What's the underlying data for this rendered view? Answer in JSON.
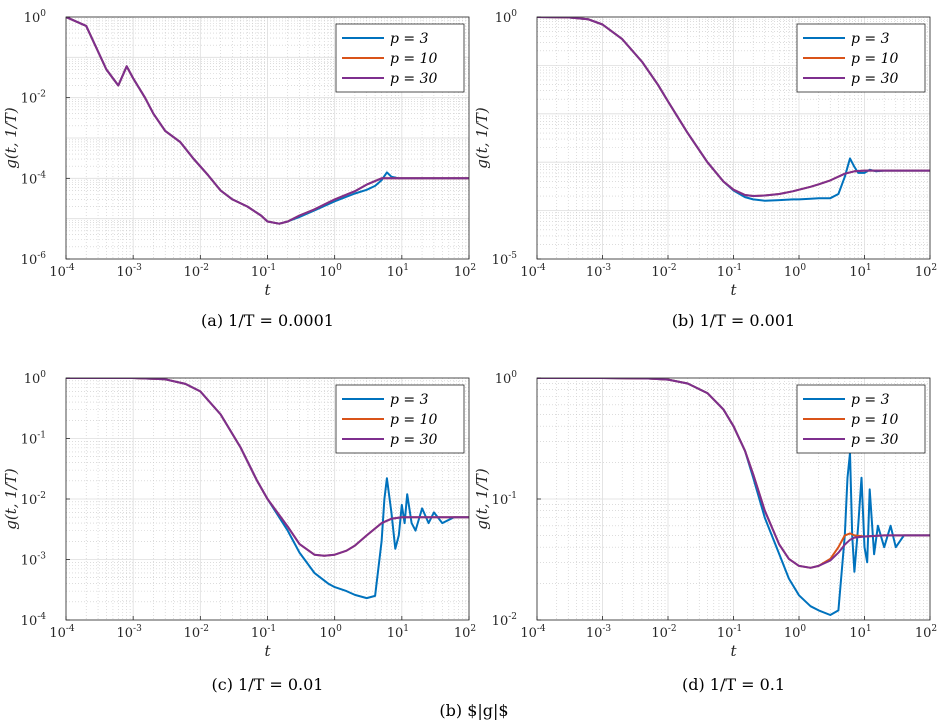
{
  "figure_caption": "(b) $|g|$",
  "colors": {
    "p3": "#0072BD",
    "p10": "#D95319",
    "p30": "#7E2F8E"
  },
  "chart_data": [
    {
      "type": "line",
      "caption": "(a) 1/T = 0.0001",
      "xlabel": "t",
      "ylabel": "g(t, 1/T)",
      "xscale": "log",
      "yscale": "log",
      "xlim": [
        0.0001,
        100
      ],
      "ylim": [
        1e-06,
        1
      ],
      "xticks": [
        0.0001,
        0.001,
        0.01,
        0.1,
        1,
        10,
        100
      ],
      "yticks": [
        1e-06,
        0.0001,
        0.01,
        1
      ],
      "ytick_exps": [
        -6,
        -4,
        -2,
        0
      ],
      "grid": true,
      "legend_position": "top-right",
      "series": [
        {
          "name": "p = 3",
          "color": "#0072BD",
          "x": [
            0.0001,
            0.0002,
            0.0004,
            0.0006,
            0.0008,
            0.001,
            0.0015,
            0.002,
            0.003,
            0.005,
            0.008,
            0.013,
            0.02,
            0.03,
            0.05,
            0.08,
            0.1,
            0.15,
            0.2,
            0.3,
            0.5,
            1,
            2,
            3,
            4,
            5,
            6,
            7,
            9,
            12,
            20,
            50,
            100
          ],
          "y": [
            1.0,
            0.6,
            0.05,
            0.02,
            0.06,
            0.03,
            0.01,
            0.004,
            0.0015,
            0.0008,
            0.0003,
            0.00012,
            5e-05,
            3e-05,
            2e-05,
            1.2e-05,
            8.5e-06,
            7.5e-06,
            8.5e-06,
            1.1e-05,
            1.6e-05,
            2.7e-05,
            4.2e-05,
            5.2e-05,
            6.5e-05,
            9e-05,
            0.00014,
            0.00011,
            0.0001,
            0.0001,
            0.0001,
            0.0001,
            0.0001
          ]
        },
        {
          "name": "p = 10",
          "color": "#D95319",
          "x": [
            0.0001,
            0.0002,
            0.0004,
            0.0006,
            0.0008,
            0.001,
            0.0015,
            0.002,
            0.003,
            0.005,
            0.008,
            0.013,
            0.02,
            0.03,
            0.05,
            0.08,
            0.1,
            0.15,
            0.2,
            0.3,
            0.5,
            1,
            2,
            3,
            5,
            7,
            10,
            20,
            50,
            100
          ],
          "y": [
            1.0,
            0.6,
            0.05,
            0.02,
            0.06,
            0.03,
            0.01,
            0.004,
            0.0015,
            0.0008,
            0.0003,
            0.00012,
            5e-05,
            3e-05,
            2e-05,
            1.2e-05,
            8.5e-06,
            7.5e-06,
            8.5e-06,
            1.2e-05,
            1.7e-05,
            3e-05,
            4.8e-05,
            7e-05,
            0.0001,
            0.0001,
            0.0001,
            0.0001,
            0.0001,
            0.0001
          ]
        },
        {
          "name": "p = 30",
          "color": "#7E2F8E",
          "x": [
            0.0001,
            0.0002,
            0.0004,
            0.0006,
            0.0008,
            0.001,
            0.0015,
            0.002,
            0.003,
            0.005,
            0.008,
            0.013,
            0.02,
            0.03,
            0.05,
            0.08,
            0.1,
            0.15,
            0.2,
            0.3,
            0.5,
            1,
            2,
            3,
            5,
            7,
            10,
            20,
            50,
            100
          ],
          "y": [
            1.0,
            0.6,
            0.05,
            0.02,
            0.06,
            0.03,
            0.01,
            0.004,
            0.0015,
            0.0008,
            0.0003,
            0.00012,
            5e-05,
            3e-05,
            2e-05,
            1.2e-05,
            8.5e-06,
            7.5e-06,
            8.5e-06,
            1.2e-05,
            1.7e-05,
            3e-05,
            4.8e-05,
            7e-05,
            0.0001,
            0.0001,
            0.0001,
            0.0001,
            0.0001,
            0.0001
          ]
        }
      ]
    },
    {
      "type": "line",
      "caption": "(b) 1/T = 0.001",
      "xlabel": "t",
      "ylabel": "g(t, 1/T)",
      "xscale": "log",
      "yscale": "log",
      "xlim": [
        0.0001,
        100
      ],
      "ylim": [
        1e-05,
        1
      ],
      "xticks": [
        0.0001,
        0.001,
        0.01,
        0.1,
        1,
        10,
        100
      ],
      "yticks": [
        1e-05,
        1
      ],
      "ytick_exps": [
        -5,
        0
      ],
      "grid": true,
      "legend_position": "top-right",
      "series": [
        {
          "name": "p = 3",
          "color": "#0072BD",
          "x": [
            0.0001,
            0.0003,
            0.0006,
            0.001,
            0.002,
            0.004,
            0.007,
            0.01,
            0.02,
            0.04,
            0.07,
            0.1,
            0.15,
            0.2,
            0.3,
            0.5,
            0.8,
            1,
            1.5,
            2,
            3,
            4,
            5,
            6,
            7,
            8,
            10,
            12,
            15,
            20,
            50,
            100
          ],
          "y": [
            1.0,
            0.98,
            0.9,
            0.7,
            0.35,
            0.12,
            0.04,
            0.018,
            0.004,
            0.001,
            0.0004,
            0.00026,
            0.00019,
            0.00017,
            0.00016,
            0.000165,
            0.00017,
            0.00017,
            0.000175,
            0.00018,
            0.00018,
            0.00022,
            0.0005,
            0.0012,
            0.0008,
            0.0006,
            0.0006,
            0.0007,
            0.00065,
            0.00067,
            0.00067,
            0.00067
          ]
        },
        {
          "name": "p = 10",
          "color": "#D95319",
          "x": [
            0.0001,
            0.0003,
            0.0006,
            0.001,
            0.002,
            0.004,
            0.007,
            0.01,
            0.02,
            0.04,
            0.07,
            0.1,
            0.15,
            0.2,
            0.3,
            0.5,
            0.8,
            1,
            1.5,
            2,
            3,
            5,
            7,
            10,
            20,
            50,
            100
          ],
          "y": [
            1.0,
            0.98,
            0.9,
            0.7,
            0.35,
            0.12,
            0.04,
            0.018,
            0.004,
            0.001,
            0.0004,
            0.00027,
            0.00021,
            0.0002,
            0.000205,
            0.00022,
            0.00025,
            0.00027,
            0.00031,
            0.00035,
            0.00042,
            0.00058,
            0.00065,
            0.00067,
            0.00067,
            0.00067,
            0.00067
          ]
        },
        {
          "name": "p = 30",
          "color": "#7E2F8E",
          "x": [
            0.0001,
            0.0003,
            0.0006,
            0.001,
            0.002,
            0.004,
            0.007,
            0.01,
            0.02,
            0.04,
            0.07,
            0.1,
            0.15,
            0.2,
            0.3,
            0.5,
            0.8,
            1,
            1.5,
            2,
            3,
            5,
            7,
            10,
            20,
            50,
            100
          ],
          "y": [
            1.0,
            0.98,
            0.9,
            0.7,
            0.35,
            0.12,
            0.04,
            0.018,
            0.004,
            0.001,
            0.0004,
            0.00027,
            0.00021,
            0.0002,
            0.000205,
            0.00022,
            0.00025,
            0.00027,
            0.00031,
            0.00035,
            0.00042,
            0.00058,
            0.00065,
            0.00067,
            0.00067,
            0.00067,
            0.00067
          ]
        }
      ]
    },
    {
      "type": "line",
      "caption": "(c) 1/T = 0.01",
      "xlabel": "t",
      "ylabel": "g(t, 1/T)",
      "xscale": "log",
      "yscale": "log",
      "xlim": [
        0.0001,
        100
      ],
      "ylim": [
        0.0001,
        1
      ],
      "xticks": [
        0.0001,
        0.001,
        0.01,
        0.1,
        1,
        10,
        100
      ],
      "yticks": [
        0.0001,
        0.001,
        0.01,
        0.1,
        1
      ],
      "ytick_exps": [
        -4,
        -3,
        -2,
        -1,
        0
      ],
      "grid": true,
      "legend_position": "top-right",
      "series": [
        {
          "name": "p = 3",
          "color": "#0072BD",
          "x": [
            0.0001,
            0.001,
            0.003,
            0.006,
            0.01,
            0.02,
            0.04,
            0.07,
            0.1,
            0.2,
            0.3,
            0.5,
            0.8,
            1,
            1.5,
            2,
            3,
            4,
            5,
            5.5,
            6,
            7,
            8,
            9,
            10,
            11,
            12,
            14,
            16,
            20,
            25,
            30,
            40,
            60,
            100
          ],
          "y": [
            1.0,
            1.0,
            0.95,
            0.8,
            0.6,
            0.25,
            0.07,
            0.02,
            0.01,
            0.003,
            0.0013,
            0.0006,
            0.0004,
            0.00035,
            0.0003,
            0.00026,
            0.00023,
            0.00025,
            0.002,
            0.01,
            0.022,
            0.006,
            0.0015,
            0.0025,
            0.008,
            0.004,
            0.012,
            0.004,
            0.003,
            0.007,
            0.004,
            0.006,
            0.004,
            0.005,
            0.005
          ]
        },
        {
          "name": "p = 10",
          "color": "#D95319",
          "x": [
            0.0001,
            0.001,
            0.003,
            0.006,
            0.01,
            0.02,
            0.04,
            0.07,
            0.1,
            0.2,
            0.3,
            0.5,
            0.7,
            1,
            1.5,
            2,
            3,
            5,
            7,
            10,
            20,
            50,
            100
          ],
          "y": [
            1.0,
            1.0,
            0.95,
            0.8,
            0.6,
            0.25,
            0.07,
            0.02,
            0.01,
            0.0035,
            0.0018,
            0.0012,
            0.00115,
            0.0012,
            0.0014,
            0.0017,
            0.0025,
            0.004,
            0.0047,
            0.005,
            0.005,
            0.005,
            0.005
          ]
        },
        {
          "name": "p = 30",
          "color": "#7E2F8E",
          "x": [
            0.0001,
            0.001,
            0.003,
            0.006,
            0.01,
            0.02,
            0.04,
            0.07,
            0.1,
            0.2,
            0.3,
            0.5,
            0.7,
            1,
            1.5,
            2,
            3,
            5,
            7,
            10,
            20,
            50,
            100
          ],
          "y": [
            1.0,
            1.0,
            0.95,
            0.8,
            0.6,
            0.25,
            0.07,
            0.02,
            0.01,
            0.0035,
            0.0018,
            0.0012,
            0.00115,
            0.0012,
            0.0014,
            0.0017,
            0.0025,
            0.004,
            0.0047,
            0.005,
            0.005,
            0.005,
            0.005
          ]
        }
      ]
    },
    {
      "type": "line",
      "caption": "(d) 1/T = 0.1",
      "xlabel": "t",
      "ylabel": "g(t, 1/T)",
      "xscale": "log",
      "yscale": "log",
      "xlim": [
        0.0001,
        100
      ],
      "ylim": [
        0.01,
        1
      ],
      "xticks": [
        0.0001,
        0.001,
        0.01,
        0.1,
        1,
        10,
        100
      ],
      "yticks": [
        0.01,
        0.1,
        1
      ],
      "ytick_exps": [
        -2,
        -1,
        0
      ],
      "grid": true,
      "legend_position": "top-right",
      "series": [
        {
          "name": "p = 3",
          "color": "#0072BD",
          "x": [
            0.0001,
            0.001,
            0.005,
            0.01,
            0.02,
            0.04,
            0.07,
            0.1,
            0.15,
            0.2,
            0.3,
            0.5,
            0.7,
            1,
            1.5,
            2,
            3,
            4,
            5,
            5.5,
            6,
            6.5,
            7,
            8,
            9,
            10,
            11,
            12,
            14,
            16,
            20,
            25,
            30,
            40,
            60,
            100
          ],
          "y": [
            1.0,
            1.0,
            0.99,
            0.97,
            0.9,
            0.75,
            0.55,
            0.4,
            0.25,
            0.15,
            0.07,
            0.035,
            0.022,
            0.016,
            0.013,
            0.012,
            0.011,
            0.012,
            0.05,
            0.15,
            0.24,
            0.05,
            0.025,
            0.06,
            0.15,
            0.04,
            0.03,
            0.12,
            0.035,
            0.06,
            0.04,
            0.06,
            0.04,
            0.05,
            0.05,
            0.05
          ]
        },
        {
          "name": "p = 10",
          "color": "#D95319",
          "x": [
            0.0001,
            0.001,
            0.005,
            0.01,
            0.02,
            0.04,
            0.07,
            0.1,
            0.15,
            0.2,
            0.3,
            0.5,
            0.7,
            1,
            1.5,
            2,
            3,
            4,
            5,
            6,
            7,
            10,
            20,
            50,
            100
          ],
          "y": [
            1.0,
            1.0,
            0.99,
            0.97,
            0.9,
            0.75,
            0.55,
            0.4,
            0.25,
            0.16,
            0.08,
            0.042,
            0.032,
            0.028,
            0.027,
            0.028,
            0.032,
            0.04,
            0.05,
            0.052,
            0.05,
            0.049,
            0.05,
            0.05,
            0.05
          ]
        },
        {
          "name": "p = 30",
          "color": "#7E2F8E",
          "x": [
            0.0001,
            0.001,
            0.005,
            0.01,
            0.02,
            0.04,
            0.07,
            0.1,
            0.15,
            0.2,
            0.3,
            0.5,
            0.7,
            1,
            1.5,
            2,
            3,
            4,
            5,
            6,
            7,
            10,
            20,
            50,
            100
          ],
          "y": [
            1.0,
            1.0,
            0.99,
            0.97,
            0.9,
            0.75,
            0.55,
            0.4,
            0.25,
            0.16,
            0.08,
            0.042,
            0.032,
            0.028,
            0.027,
            0.028,
            0.031,
            0.036,
            0.042,
            0.046,
            0.048,
            0.049,
            0.05,
            0.05,
            0.05
          ]
        }
      ]
    }
  ]
}
